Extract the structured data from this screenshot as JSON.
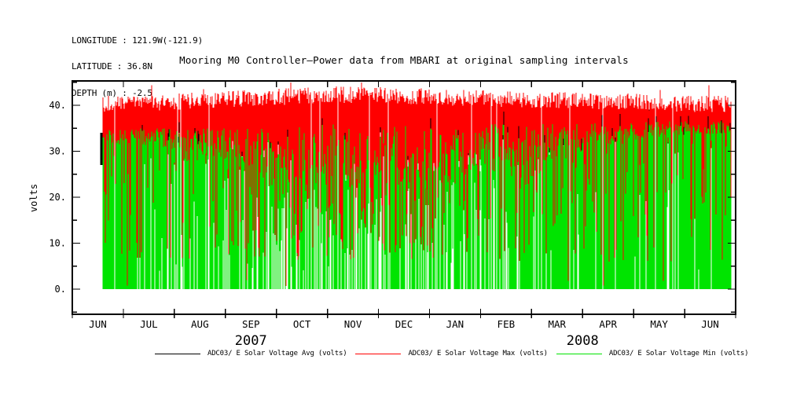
{
  "header": {
    "line1": "LONGITUDE : 121.9W(-121.9)",
    "line2": "LATITUDE : 36.8N",
    "line3": "DEPTH (m) : -2.5"
  },
  "chart_data": {
    "type": "line",
    "title": "Mooring M0 Controller—Power data from MBARI at original sampling intervals",
    "ylabel": "volts",
    "ylim": [
      -5.5,
      45.3
    ],
    "yticks": {
      "major": [
        0,
        10,
        20,
        30,
        40
      ],
      "major_labels": [
        "0.",
        "10.",
        "20.",
        "30.",
        "40."
      ],
      "minor_step": 5
    },
    "x_months": [
      "JUN",
      "JUL",
      "AUG",
      "SEP",
      "OCT",
      "NOV",
      "DEC",
      "JAN",
      "FEB",
      "MAR",
      "APR",
      "MAY",
      "JUN"
    ],
    "years": [
      {
        "label": "2007",
        "from_month": 0,
        "to_month": 7
      },
      {
        "label": "2008",
        "from_month": 7,
        "to_month": 13
      }
    ],
    "grid": "off",
    "legend_position": "bottom",
    "data_start_month": 0.6,
    "data_end_month": 12.9,
    "seed": 42,
    "series": [
      {
        "name": "ADC03/ E Solar Voltage Avg (volts)",
        "color": "#000000",
        "role": "avg",
        "visible_level_volts": [
          27,
          34
        ]
      },
      {
        "name": "ADC03/ E Solar Voltage Max (volts)",
        "color": "#ff0000",
        "role": "max",
        "monthly_top_mean": [
          40.3,
          40.5,
          40.8,
          41.3,
          41.8,
          42.3,
          42.3,
          41.8,
          41.5,
          41.3,
          41.0,
          40.8,
          40.3
        ],
        "top_jitter": 1.8,
        "spike_prob": 0.012,
        "spike_max": 45.0,
        "dip_prob_by_month": [
          0.12,
          0.15,
          0.2,
          0.3,
          0.42,
          0.48,
          0.48,
          0.45,
          0.4,
          0.35,
          0.3,
          0.25,
          0.2
        ],
        "dip_floor_volts": 6,
        "deep_zero_prob": 0.008,
        "end_drop_volts": 20
      },
      {
        "name": "ADC03/ E Solar Voltage Min (volts)",
        "color": "#00e400",
        "role": "min",
        "monthly_top_mean": [
          33.5,
          33.0,
          32.5,
          31.5,
          30.0,
          29.0,
          29.0,
          29.5,
          30.5,
          31.5,
          33.0,
          34.5,
          35.0
        ],
        "monthly_top_spread": [
          1.5,
          2.0,
          2.5,
          3.5,
          5.0,
          7.0,
          7.0,
          6.5,
          5.5,
          4.5,
          3.0,
          2.0,
          1.5
        ],
        "gap_prob_by_month": [
          0.05,
          0.06,
          0.07,
          0.08,
          0.1,
          0.11,
          0.11,
          0.1,
          0.09,
          0.07,
          0.06,
          0.05,
          0.04
        ],
        "low_start_prob_by_month": [
          0.08,
          0.1,
          0.12,
          0.15,
          0.2,
          0.24,
          0.24,
          0.2,
          0.16,
          0.12,
          0.08,
          0.06,
          0.05
        ]
      }
    ]
  },
  "legend": {
    "items": [
      {
        "label": "ADC03/ E Solar Voltage Avg (volts)",
        "color": "#000000"
      },
      {
        "label": "ADC03/ E Solar Voltage Max (volts)",
        "color": "#ff0000"
      },
      {
        "label": "ADC03/ E Solar Voltage Min (volts)",
        "color": "#00e400"
      }
    ]
  }
}
